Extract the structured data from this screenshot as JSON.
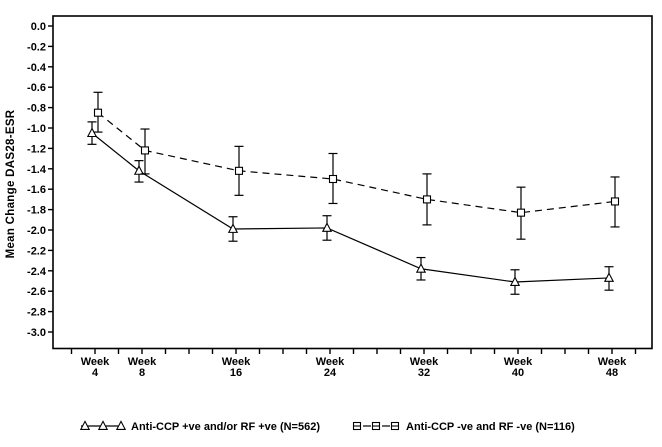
{
  "chart_data": {
    "type": "line",
    "title": "",
    "xlabel": "",
    "ylabel": "Mean Change DAS28-ESR",
    "ylim": [
      -3.0,
      0.0
    ],
    "grid": false,
    "legend_position": "bottom",
    "axis_color": "#000000",
    "background_color": "#ffffff",
    "y_tick_labels": [
      "0.0",
      "-0.2",
      "-0.4",
      "-0.6",
      "-0.8",
      "-1.0",
      "-1.2",
      "-1.4",
      "-1.6",
      "-1.8",
      "-2.0",
      "-2.2",
      "-2.4",
      "-2.6",
      "-2.8",
      "-3.0"
    ],
    "x_tick_prefix": "Week",
    "x_ticks": [
      4,
      8,
      16,
      24,
      32,
      40,
      48
    ],
    "x_minor_ticks": [
      2,
      4,
      6,
      8,
      10,
      12,
      14,
      16,
      18,
      20,
      22,
      24,
      26,
      28,
      30,
      32,
      34,
      36,
      38,
      40,
      42,
      44,
      46,
      48,
      50
    ],
    "x": [
      4,
      8,
      16,
      24,
      32,
      40,
      48
    ],
    "series": [
      {
        "name": "Anti-CCP +ve and/or RF +ve (N=562)",
        "marker": "triangle",
        "line_style": "solid",
        "values": [
          -1.05,
          -1.42,
          -1.99,
          -1.98,
          -2.38,
          -2.51,
          -2.47
        ],
        "err_upper": [
          -0.94,
          -1.32,
          -1.87,
          -1.86,
          -2.27,
          -2.39,
          -2.36
        ],
        "err_lower": [
          -1.16,
          -1.53,
          -2.11,
          -2.1,
          -2.49,
          -2.63,
          -2.59
        ]
      },
      {
        "name": "Anti-CCP -ve and RF -ve (N=116)",
        "marker": "square",
        "line_style": "dashed",
        "values": [
          -0.85,
          -1.22,
          -1.42,
          -1.5,
          -1.7,
          -1.83,
          -1.72
        ],
        "err_upper": [
          -0.65,
          -1.01,
          -1.18,
          -1.25,
          -1.45,
          -1.58,
          -1.48
        ],
        "err_lower": [
          -1.04,
          -1.45,
          -1.66,
          -1.74,
          -1.95,
          -2.09,
          -1.97
        ]
      }
    ]
  }
}
